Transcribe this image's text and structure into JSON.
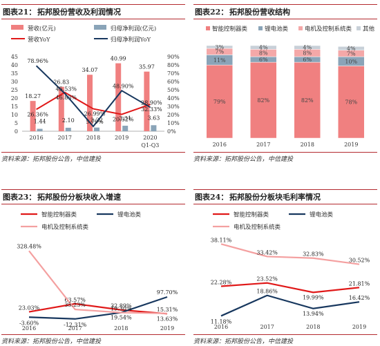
{
  "panels": [
    {
      "num": "图表21：",
      "title": "拓邦股份营收及利润情况",
      "source": "资料来源：拓邦股份公告，中信建投"
    },
    {
      "num": "图表22：",
      "title": "拓邦股份营收结构",
      "source": "资料来源：拓邦股份公告，中信建投"
    },
    {
      "num": "图表23：",
      "title": "拓邦股份分板块收入增速",
      "source": "资料来源：拓邦股份公告，中信建投"
    },
    {
      "num": "图表24：",
      "title": "拓邦股份分板块毛利率情况",
      "source": "资料来源：拓邦股份公告，中信建投"
    }
  ],
  "chart_data": [
    {
      "type": "bar",
      "categories": [
        "2016",
        "2017",
        "2018",
        "2019",
        "2020"
      ],
      "category_sublabels": [
        "",
        "",
        "",
        "",
        "Q1-Q3"
      ],
      "left_ylim": [
        0,
        45
      ],
      "left_ticks": [
        0,
        5,
        10,
        15,
        20,
        25,
        30,
        35,
        40,
        45
      ],
      "right_ylim": [
        0,
        90
      ],
      "right_ticks": [
        "0%",
        "10%",
        "20%",
        "30%",
        "40%",
        "50%",
        "60%",
        "70%",
        "80%",
        "90%"
      ],
      "series": [
        {
          "name": "营收(亿元)",
          "kind": "bar",
          "axis": "left",
          "color": "#f08080",
          "values": [
            18.27,
            26.83,
            34.07,
            40.99,
            35.97
          ],
          "labels": [
            "18.27",
            "26.83",
            "34.07",
            "40.99",
            "35.97"
          ]
        },
        {
          "name": "归母净利润(亿元)",
          "kind": "bar",
          "axis": "left",
          "color": "#8aa4b8",
          "values": [
            1.44,
            2.1,
            2.22,
            3.31,
            3.63
          ],
          "labels": [
            "1.44",
            "2.10",
            "2.22",
            "3.31",
            "3.63"
          ]
        },
        {
          "name": "营收YoY",
          "kind": "line",
          "axis": "right",
          "color": "#e01818",
          "values": [
            26.36,
            46.83,
            26.99,
            20.32,
            32.33
          ],
          "labels": [
            "26.36%",
            "46.83%",
            "26.99%",
            "20.32%",
            "32.33%"
          ]
        },
        {
          "name": "归母净利润YoY",
          "kind": "line",
          "axis": "right",
          "color": "#17375e",
          "values": [
            78.96,
            45.53,
            5.79,
            48.9,
            28.9
          ],
          "labels": [
            "78.96%",
            "45.53%",
            "5.79%",
            "48.90%",
            "28.90%"
          ]
        }
      ],
      "grid": false,
      "legend": "top"
    },
    {
      "type": "bar",
      "stacked": true,
      "categories": [
        "2016",
        "2017",
        "2018",
        "2019"
      ],
      "series": [
        {
          "name": "智能控制器类",
          "color": "#f08080",
          "values": [
            79,
            82,
            82,
            78
          ],
          "labels": [
            "79%",
            "82%",
            "82%",
            "78%"
          ]
        },
        {
          "name": "锂电池类",
          "color": "#8aa4b8",
          "values": [
            11,
            6,
            6,
            10
          ],
          "labels": [
            "11%",
            "6%",
            "6%",
            "10%"
          ]
        },
        {
          "name": "电机及控制系统类",
          "color": "#f4a8a8",
          "values": [
            7,
            8,
            8,
            7
          ],
          "labels": [
            "7%",
            "8%",
            "8%",
            "7%"
          ]
        },
        {
          "name": "其他",
          "color": "#c8d0d8",
          "values": [
            3,
            4,
            4,
            4
          ],
          "labels": [
            "3%",
            "4%",
            "4%",
            "4%"
          ]
        }
      ],
      "ylim": [
        0,
        100
      ],
      "grid": false,
      "legend": "top"
    },
    {
      "type": "line",
      "categories": [
        "2016",
        "2017",
        "2018",
        "2019"
      ],
      "ylim": [
        -20,
        340
      ],
      "series": [
        {
          "name": "智能控制器类",
          "color": "#e01818",
          "values": [
            23.03,
            63.57,
            32.89,
            13.63
          ],
          "labels": [
            "23.03%",
            "63.57%",
            "32.89%",
            "13.63%"
          ]
        },
        {
          "name": "锂电池类",
          "color": "#17375e",
          "values": [
            -3.6,
            -12.31,
            19.54,
            97.7
          ],
          "labels": [
            "-3.60%",
            "-12.31%",
            "19.54%",
            "97.70%"
          ]
        },
        {
          "name": "电机及控制系统类",
          "color": "#f4a0a0",
          "values": [
            328.48,
            35.23,
            19.3,
            15.31
          ],
          "labels": [
            "328.48%",
            "35.23%",
            "19.30%",
            "15.31%"
          ]
        }
      ],
      "grid": false,
      "legend": "top"
    },
    {
      "type": "line",
      "categories": [
        "2016",
        "2017",
        "2018",
        "2019"
      ],
      "ylim": [
        10,
        40
      ],
      "series": [
        {
          "name": "智能控制器类",
          "color": "#e01818",
          "values": [
            22.28,
            23.52,
            19.99,
            21.81
          ],
          "labels": [
            "22.28%",
            "23.52%",
            "19.99%",
            "21.81%"
          ]
        },
        {
          "name": "锂电池类",
          "color": "#17375e",
          "values": [
            11.18,
            18.86,
            13.94,
            16.42
          ],
          "labels": [
            "11.18%",
            "18.86%",
            "13.94%",
            "16.42%"
          ]
        },
        {
          "name": "电机及控制系统类",
          "color": "#f4a0a0",
          "values": [
            38.11,
            33.42,
            32.83,
            30.52
          ],
          "labels": [
            "38.11%",
            "33.42%",
            "32.83%",
            "30.52%"
          ]
        }
      ],
      "grid": false,
      "legend": "top"
    }
  ]
}
